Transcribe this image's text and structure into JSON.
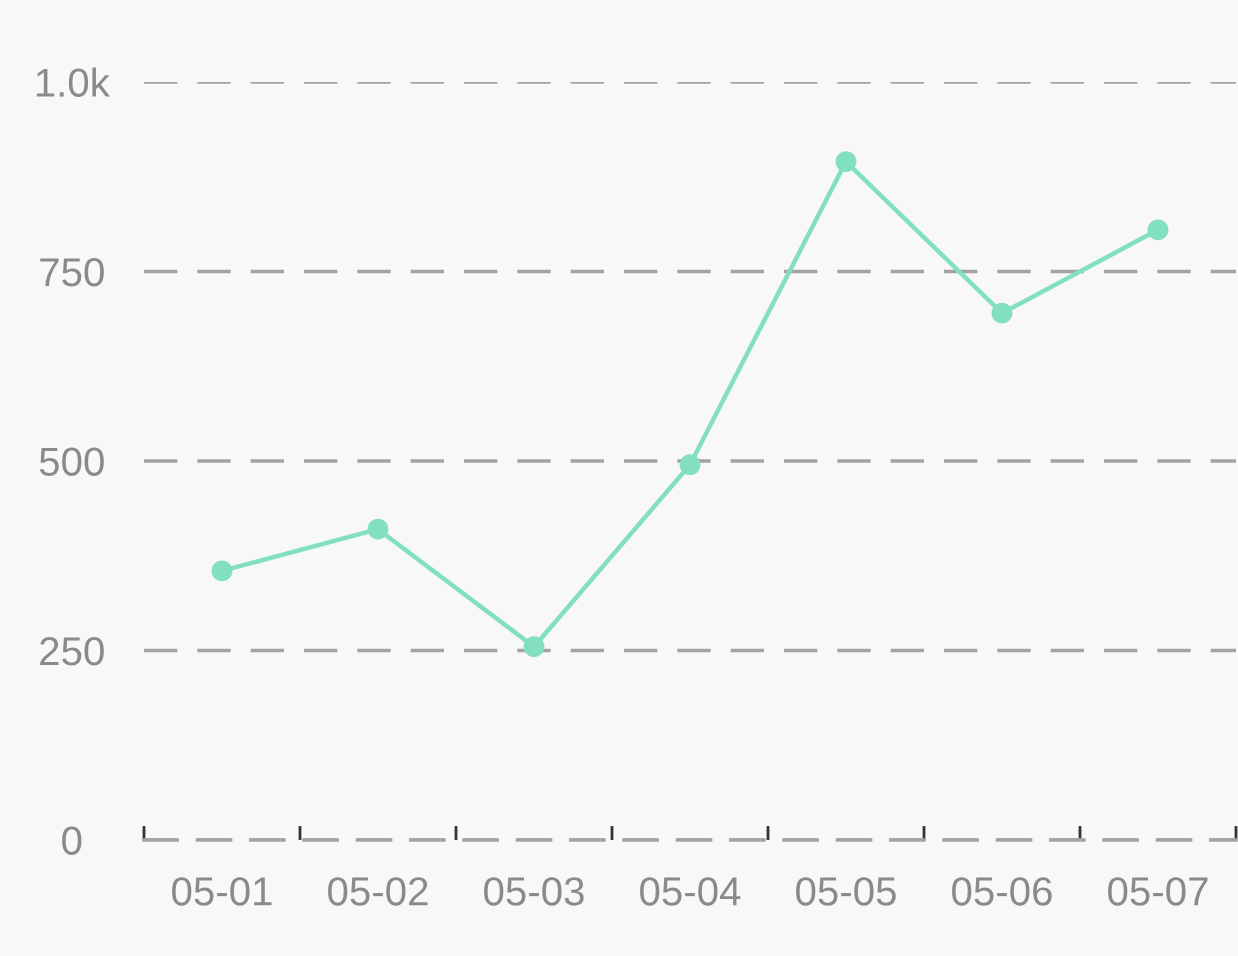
{
  "chart_data": {
    "type": "line",
    "categories": [
      "05-01",
      "05-02",
      "05-03",
      "05-04",
      "05-05",
      "05-06",
      "05-07"
    ],
    "series": [
      {
        "color": "#83dfc2",
        "values": [
          355,
          410,
          255,
          495,
          895,
          695,
          805
        ]
      }
    ],
    "ylim": [
      0,
      1000
    ],
    "yticks": [
      0,
      250,
      500,
      750,
      {
        "value": 1000,
        "label": "1.0k"
      }
    ],
    "grid": "y",
    "marker": "circle",
    "line_style": "solid"
  }
}
